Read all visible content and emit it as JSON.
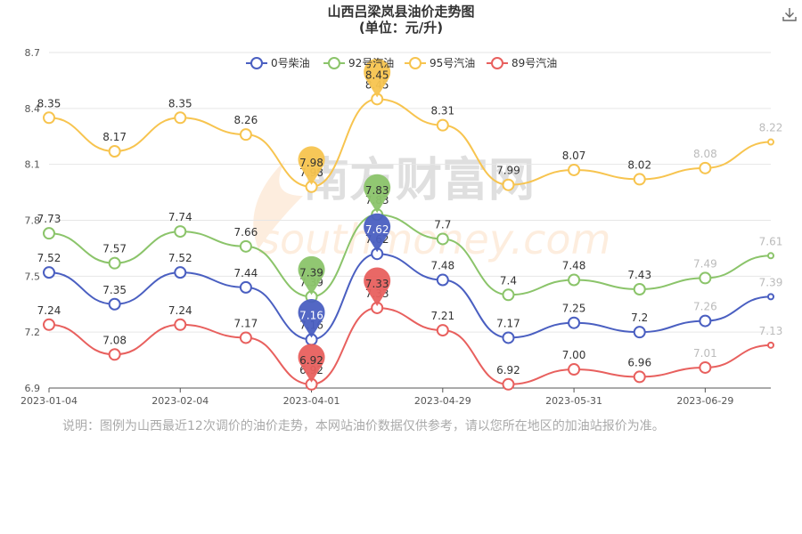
{
  "chart_data": {
    "type": "line",
    "title": "山西吕梁岚县油价走势图",
    "subtitle": "(单位：元/升)",
    "ylim": [
      6.9,
      8.7
    ],
    "yticks": [
      "6.9",
      "7.2",
      "7.5",
      "7.8",
      "8.1",
      "8.4",
      "8.7"
    ],
    "xtick_labels": [
      "2023-01-04",
      "2023-02-04",
      "2023-04-01",
      "2023-04-29",
      "2023-05-31",
      "2023-06-29"
    ],
    "grid": true,
    "legend_position": "top",
    "series": [
      {
        "name": "0号柴油",
        "color": "#4a5fc1",
        "values": [
          "7.52",
          "7.35",
          "7.52",
          "7.44",
          "7.16",
          "7.62",
          "7.48",
          "7.17",
          "7.25",
          "7.2",
          "7.26",
          "7.39"
        ],
        "pin_label": "7.16"
      },
      {
        "name": "92号汽油",
        "color": "#8bc46a",
        "values": [
          "7.73",
          "7.57",
          "7.74",
          "7.66",
          "7.39",
          "7.83",
          "7.7",
          "7.4",
          "7.48",
          "7.43",
          "7.49",
          "7.61"
        ],
        "pin_label": "7.39"
      },
      {
        "name": "95号汽油",
        "color": "#f7c44f",
        "values": [
          "8.35",
          "8.17",
          "8.35",
          "8.26",
          "7.98",
          "8.45",
          "8.31",
          "7.99",
          "8.07",
          "8.02",
          "8.08",
          "8.22"
        ],
        "pin_label": "7.98"
      },
      {
        "name": "89号汽油",
        "color": "#e8605e",
        "values": [
          "7.24",
          "7.08",
          "7.24",
          "7.17",
          "6.92",
          "7.33",
          "7.21",
          "6.92",
          "7.00",
          "6.96",
          "7.01",
          "7.13"
        ],
        "pin_label": "6.92"
      }
    ]
  },
  "note": "说明：图例为山西最近12次调价的油价走势，本网站油价数据仅供参考，请以您所在地区的加油站报价为准。",
  "watermark": {
    "main": "南方财富网",
    "sub": "southmoney.com"
  },
  "icons": {
    "download": "download-icon"
  }
}
